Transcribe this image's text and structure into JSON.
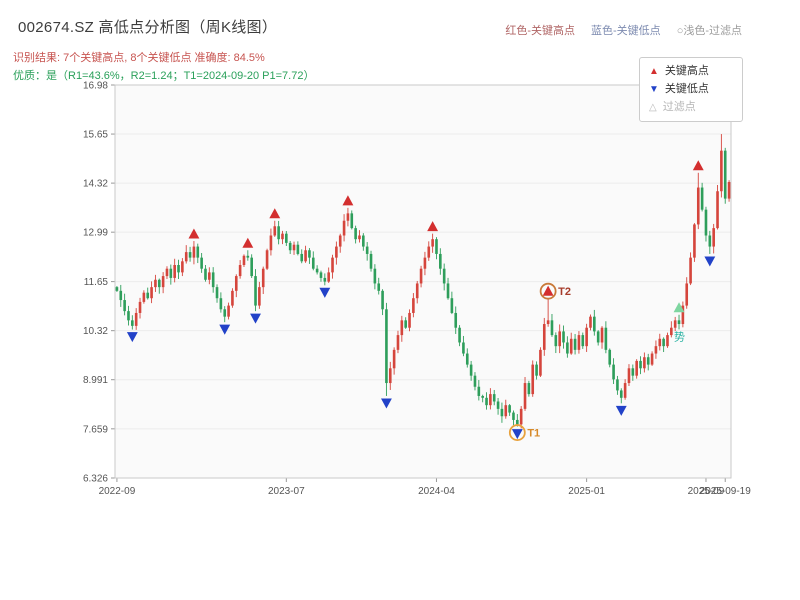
{
  "header": {
    "title": "002674.SZ 高低点分析图（周K线图）",
    "color_legend": {
      "high": "红色-关键高点",
      "low": "蓝色-关键低点",
      "filter": "○浅色-过滤点"
    }
  },
  "subtitles": {
    "recognition": "识别结果: 7个关键高点, 8个关键低点  准确度: 84.5%",
    "quality": "优质：是（R1=43.6%，R2=1.24；T1=2024-09-20 P1=7.72）"
  },
  "legend_box": {
    "key_high": "关键高点",
    "key_low": "关键低点",
    "filter": "过滤点"
  },
  "chart_data": {
    "type": "candlestick",
    "title": "002674.SZ 高低点分析图（周K线图）",
    "xlabel": "",
    "ylabel": "",
    "ylim": [
      6.326,
      16.98
    ],
    "yticks": [
      "6.326",
      "7.659",
      "8.991",
      "10.32",
      "11.65",
      "12.99",
      "14.32",
      "15.65",
      "16.98"
    ],
    "ytick_values": [
      6.326,
      7.659,
      8.991,
      10.32,
      11.65,
      12.99,
      14.32,
      15.65,
      16.98
    ],
    "xticks": [
      {
        "index": 0,
        "label": "2022-09"
      },
      {
        "index": 44,
        "label": "2023-07"
      },
      {
        "index": 83,
        "label": "2024-04"
      },
      {
        "index": 122,
        "label": "2025-01"
      },
      {
        "index": 153,
        "label": "2025-09"
      }
    ],
    "last_date_label": {
      "index": 158,
      "label": "2025-09-19"
    },
    "first_open": 11.5,
    "closes": [
      11.4,
      11.15,
      10.85,
      10.6,
      10.45,
      10.8,
      11.1,
      11.35,
      11.2,
      11.5,
      11.7,
      11.5,
      11.8,
      12.0,
      11.75,
      12.1,
      11.9,
      12.2,
      12.45,
      12.3,
      12.6,
      12.3,
      12.0,
      11.7,
      11.9,
      11.5,
      11.2,
      10.9,
      10.7,
      11.0,
      11.4,
      11.8,
      12.1,
      12.35,
      12.3,
      11.8,
      11.0,
      11.5,
      12.0,
      12.5,
      12.9,
      13.15,
      12.8,
      12.95,
      12.7,
      12.5,
      12.65,
      12.4,
      12.2,
      12.5,
      12.3,
      12.0,
      11.9,
      11.75,
      11.65,
      11.9,
      12.3,
      12.6,
      12.9,
      13.3,
      13.5,
      13.1,
      12.8,
      12.9,
      12.6,
      12.4,
      12.0,
      11.6,
      11.4,
      10.9,
      8.9,
      9.3,
      9.8,
      10.2,
      10.6,
      10.4,
      10.8,
      11.2,
      11.6,
      12.0,
      12.3,
      12.6,
      12.8,
      12.4,
      12.0,
      11.6,
      11.2,
      10.8,
      10.4,
      10.0,
      9.7,
      9.4,
      9.1,
      8.8,
      8.55,
      8.5,
      8.3,
      8.6,
      8.4,
      8.2,
      8.0,
      8.3,
      8.1,
      7.9,
      7.78,
      8.2,
      8.9,
      8.6,
      9.4,
      9.1,
      9.8,
      10.5,
      10.6,
      10.2,
      9.9,
      10.3,
      10.0,
      9.7,
      10.1,
      9.8,
      10.2,
      9.9,
      10.4,
      10.7,
      10.3,
      10.0,
      10.4,
      9.8,
      9.4,
      9.0,
      8.7,
      8.5,
      8.9,
      9.3,
      9.1,
      9.5,
      9.3,
      9.6,
      9.4,
      9.7,
      9.9,
      10.1,
      9.9,
      10.2,
      10.4,
      10.6,
      10.5,
      11.0,
      11.6,
      12.3,
      13.2,
      14.2,
      13.6,
      12.9,
      12.6,
      13.1,
      14.1,
      15.2,
      13.9,
      14.35
    ],
    "high_overrides": {
      "157": 15.65
    },
    "key_highs": [
      {
        "index": 20,
        "price": 12.75
      },
      {
        "index": 34,
        "price": 12.5
      },
      {
        "index": 41,
        "price": 13.3
      },
      {
        "index": 60,
        "price": 13.65
      },
      {
        "index": 82,
        "price": 12.95
      },
      {
        "index": 112,
        "price": 11.2
      },
      {
        "index": 151,
        "price": 14.6
      }
    ],
    "key_lows": [
      {
        "index": 4,
        "price": 10.35
      },
      {
        "index": 28,
        "price": 10.55
      },
      {
        "index": 36,
        "price": 10.85
      },
      {
        "index": 54,
        "price": 11.55
      },
      {
        "index": 70,
        "price": 8.55
      },
      {
        "index": 104,
        "price": 7.72
      },
      {
        "index": 131,
        "price": 8.35
      },
      {
        "index": 154,
        "price": 12.4
      }
    ],
    "filter_points": [
      {
        "index": 146,
        "price": 10.75
      }
    ],
    "annotations": [
      {
        "index": 104,
        "price": 7.72,
        "side": "low",
        "label": "T1",
        "circle_color": "#e8a23d",
        "label_color": "#d78a2a"
      },
      {
        "index": 112,
        "price": 11.2,
        "side": "high",
        "label": "T2",
        "circle_color": "#c97a3a",
        "label_color": "#a63c2b"
      },
      {
        "index": 146,
        "price": 10.05,
        "side": "text",
        "label": "势",
        "circle_color": "",
        "label_color": "#2bb3a3"
      }
    ],
    "colors": {
      "up": "#d5453c",
      "down": "#2e9e5b",
      "key_high": "#d32f2f",
      "key_low": "#2242c8",
      "filter": "#7ed6a0",
      "grid": "#ececec",
      "axis": "#c9c9c9",
      "tick_text": "#555555"
    }
  }
}
